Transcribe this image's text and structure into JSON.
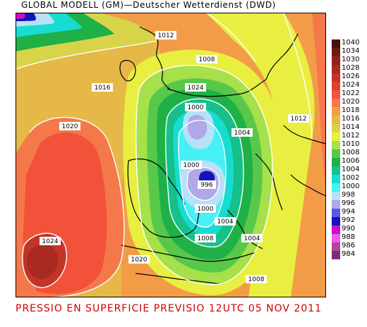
{
  "header": {
    "title": "GLOBAL MODELL (GM)—Deutscher Wetterdienst (DWD)"
  },
  "footer": {
    "caption": "PRESSIO EN SUPERFICIE   PREVISIO 12UTC 05 NOV 2011"
  },
  "legend": {
    "items": [
      {
        "label": "1040",
        "color": "#4a0f0f"
      },
      {
        "label": "1034",
        "color": "#6e1a14"
      },
      {
        "label": "1030",
        "color": "#8e221a"
      },
      {
        "label": "1028",
        "color": "#a82a20"
      },
      {
        "label": "1026",
        "color": "#c23428"
      },
      {
        "label": "1024",
        "color": "#dd4030"
      },
      {
        "label": "1022",
        "color": "#f2523a"
      },
      {
        "label": "1020",
        "color": "#f5784a"
      },
      {
        "label": "1018",
        "color": "#f39c48"
      },
      {
        "label": "1016",
        "color": "#e6b848"
      },
      {
        "label": "1014",
        "color": "#d8d44a"
      },
      {
        "label": "1012",
        "color": "#e8ef40"
      },
      {
        "label": "1010",
        "color": "#a6e04a"
      },
      {
        "label": "1008",
        "color": "#58c84a"
      },
      {
        "label": "1006",
        "color": "#1fb048"
      },
      {
        "label": "1004",
        "color": "#16c08a"
      },
      {
        "label": "1002",
        "color": "#18dcd2"
      },
      {
        "label": "1000",
        "color": "#46f0f5"
      },
      {
        "label": "998",
        "color": "#b8e0f8"
      },
      {
        "label": "996",
        "color": "#b0a8e8"
      },
      {
        "label": "994",
        "color": "#5a58e0"
      },
      {
        "label": "992",
        "color": "#1414b8"
      },
      {
        "label": "990",
        "color": "#c810c8"
      },
      {
        "label": "988",
        "color": "#f058f0"
      },
      {
        "label": "986",
        "color": "#b04898"
      },
      {
        "label": "984",
        "color": "#7a3078"
      }
    ]
  },
  "isobar_labels": [
    "1012",
    "1008",
    "1016",
    "1024",
    "1020",
    "1000",
    "1004",
    "1012",
    "1000",
    "996",
    "1000",
    "1004",
    "1008",
    "1004",
    "1024",
    "1020",
    "1008"
  ]
}
